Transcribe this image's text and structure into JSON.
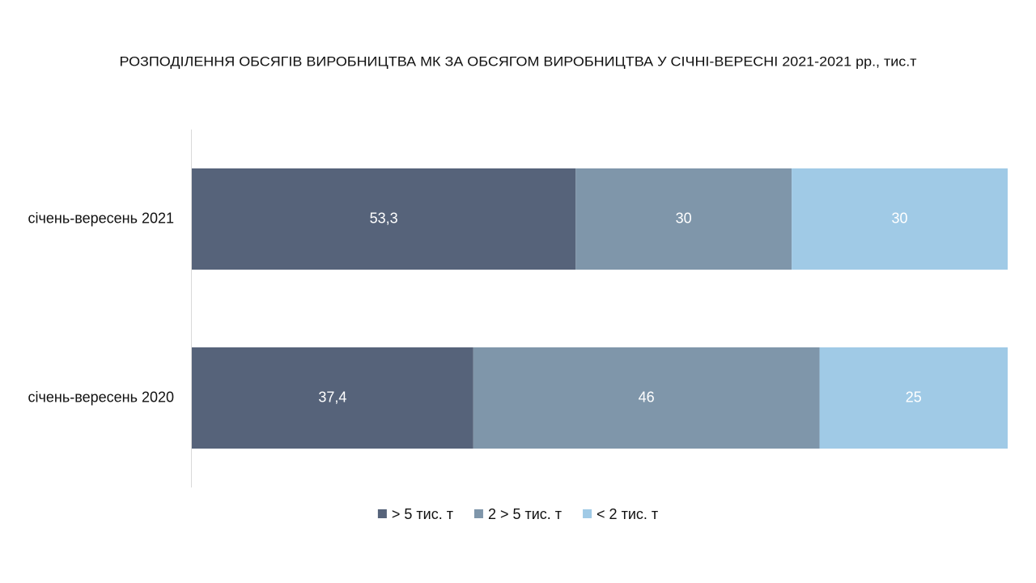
{
  "chart_data": {
    "type": "bar",
    "orientation": "horizontal",
    "stack": "percent",
    "title": "РОЗПОДІЛЕННЯ ОБСЯГІВ ВИРОБНИЦТВА МК ЗА ОБСЯГОМ ВИРОБНИЦТВА У СІЧНІ-ВЕРЕСНІ 2021-2021 рр., тис.т",
    "categories": [
      "січень-вересень 2021",
      "січень-вересень 2020"
    ],
    "series": [
      {
        "name": "> 5 тис. т",
        "color": "#56637a",
        "values": [
          53.3,
          37.4
        ],
        "value_labels": [
          "53,3",
          "37,4"
        ]
      },
      {
        "name": "2 > 5 тис. т",
        "color": "#7f96aa",
        "values": [
          30,
          46
        ]
      },
      {
        "name": "< 2 тис. т",
        "color": "#a0cae6",
        "values": [
          30,
          25
        ]
      }
    ],
    "legend": "bottom"
  }
}
